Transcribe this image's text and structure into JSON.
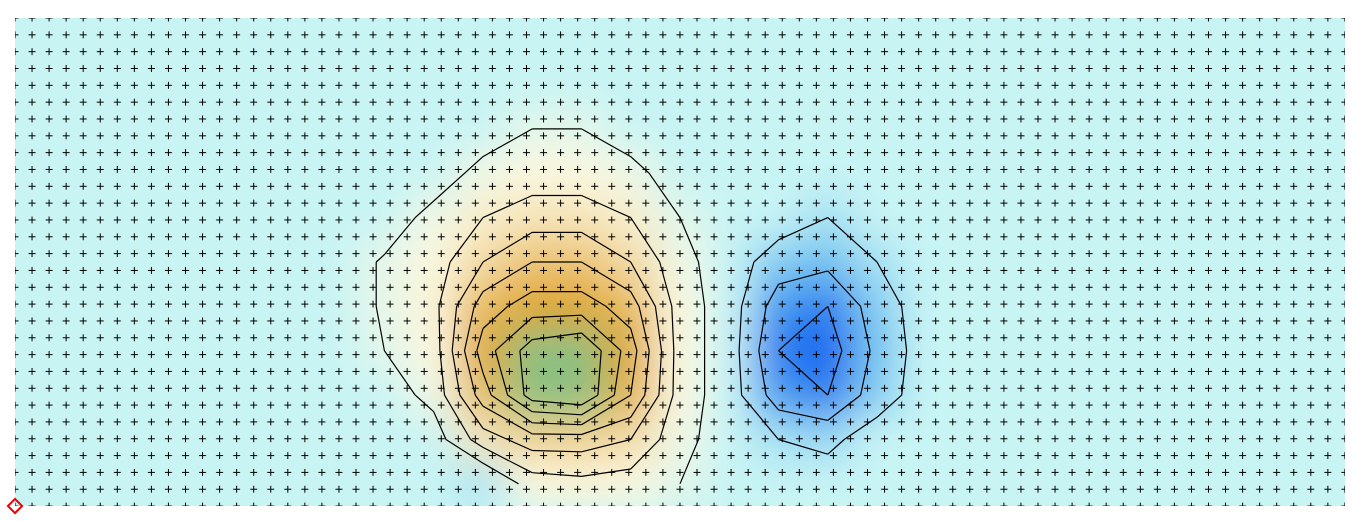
{
  "chart_data": {
    "type": "contour",
    "values": [
      [
        0,
        0,
        0,
        0,
        0,
        0,
        0,
        0,
        0,
        0,
        0,
        0,
        0,
        0,
        0,
        0,
        0,
        0,
        0,
        0,
        0,
        0,
        0,
        0,
        0,
        0,
        0
      ],
      [
        0,
        0,
        0,
        0,
        0,
        0,
        0,
        0,
        0,
        0,
        0,
        0,
        0,
        0,
        0,
        0,
        0,
        0,
        0,
        0,
        0,
        0,
        0,
        0,
        0,
        0,
        0
      ],
      [
        0,
        0,
        0,
        0,
        0,
        0,
        0,
        0,
        0,
        0,
        0.5,
        0.5,
        0,
        0,
        0,
        0,
        0,
        0,
        0,
        0,
        0,
        0,
        0,
        0,
        0,
        0,
        0
      ],
      [
        0,
        0,
        0,
        0,
        0,
        0,
        0,
        0,
        0,
        0.8,
        1,
        1,
        0.8,
        0,
        0,
        0,
        0,
        0,
        0,
        0,
        0,
        0,
        0,
        0,
        0,
        0,
        0
      ],
      [
        0,
        0,
        0,
        0,
        0,
        0,
        0,
        0,
        0.8,
        1.5,
        2,
        2,
        1.5,
        0.5,
        0,
        0,
        -1,
        0,
        0,
        0,
        0,
        0,
        0,
        0,
        0,
        0,
        0
      ],
      [
        0,
        0,
        0,
        0,
        0,
        0,
        0,
        0.6,
        1,
        2.5,
        3.5,
        3.5,
        2.5,
        0.8,
        0,
        -2,
        -2.5,
        -1,
        0,
        0,
        0,
        0,
        0,
        0,
        0,
        0,
        0
      ],
      [
        0,
        0,
        0,
        0,
        0,
        0,
        0,
        0.6,
        1.2,
        4,
        5,
        5,
        4,
        1,
        0,
        -4,
        -5,
        -2,
        0,
        0,
        0,
        0,
        0,
        0,
        0,
        0,
        0
      ],
      [
        0,
        0,
        0,
        0,
        0,
        0,
        0,
        0.5,
        1,
        5,
        7,
        7.5,
        5,
        1,
        0,
        -5,
        -6,
        -2.5,
        0,
        0,
        0,
        0,
        0,
        0,
        0,
        0,
        0
      ],
      [
        0,
        0,
        0,
        0,
        0,
        0,
        0,
        0,
        0.8,
        4,
        7,
        7.5,
        4.5,
        1,
        0,
        -4,
        -5,
        -2,
        0,
        0,
        0,
        0,
        0,
        0,
        0,
        0,
        0
      ],
      [
        0,
        0,
        0,
        0,
        0,
        0,
        0,
        0,
        0,
        2,
        3,
        3,
        2.5,
        0.8,
        0,
        -1,
        -1.5,
        0,
        0,
        0,
        0,
        0,
        0,
        0,
        0,
        0,
        0
      ],
      [
        0,
        0,
        0,
        0,
        0,
        0,
        0,
        0,
        0,
        -0.8,
        1,
        1.2,
        1,
        0.5,
        0,
        0,
        0,
        0,
        0,
        0,
        0,
        0,
        0,
        0,
        0,
        0,
        0
      ]
    ],
    "levels": [
      -5,
      -3,
      -1,
      0.5,
      1.5,
      2.5,
      3.5,
      4.5,
      5.5,
      6.5
    ],
    "colorscale": [
      [
        -6,
        "#1060f0"
      ],
      [
        -3,
        "#60b8f0"
      ],
      [
        0,
        "#c8f4f4"
      ],
      [
        1,
        "#fbf8e0"
      ],
      [
        3,
        "#f0d090"
      ],
      [
        5,
        "#e0a528"
      ],
      [
        7,
        "#8cc080"
      ]
    ]
  }
}
